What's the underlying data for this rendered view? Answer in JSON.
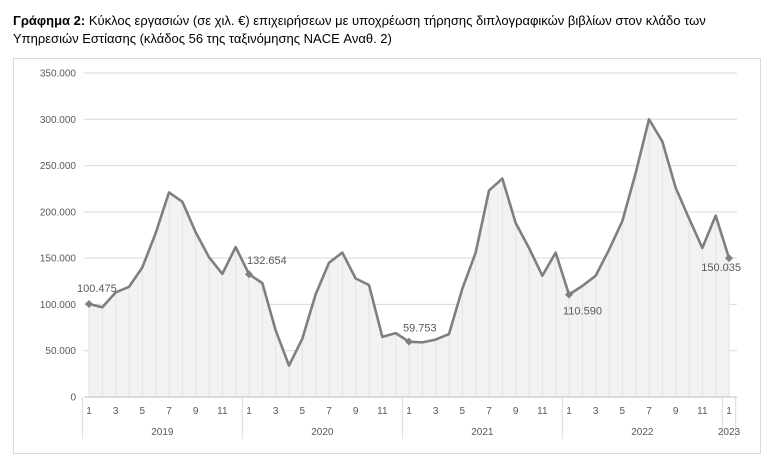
{
  "caption": {
    "lead": "Γράφημα 2:",
    "text": " Κύκλος εργασιών (σε χιλ. €) επιχειρήσεων με υποχρέωση τήρησης διπλογραφικών βιβλίων στον κλάδο των Υπηρεσιών Εστίασης (κλάδος 56 της ταξινόμησης NACE Αναθ. 2)"
  },
  "chart_data": {
    "type": "area",
    "title": "",
    "xlabel": "",
    "ylabel": "",
    "ylim": [
      0,
      350000
    ],
    "ytick_labels": [
      "0",
      "50.000",
      "100.000",
      "150.000",
      "200.000",
      "250.000",
      "300.000",
      "350.000"
    ],
    "yticks": [
      0,
      50000,
      100000,
      150000,
      200000,
      250000,
      300000,
      350000
    ],
    "grid": true,
    "line_color": "#7f7f7f",
    "fill_color": "#f2f2f2",
    "years": [
      "2019",
      "2020",
      "2021",
      "2022",
      "2023"
    ],
    "x_tick_labels": [
      "1",
      "3",
      "5",
      "7",
      "9",
      "11",
      "1",
      "3",
      "5",
      "7",
      "9",
      "11",
      "1",
      "3",
      "5",
      "7",
      "9",
      "11",
      "1",
      "3",
      "5",
      "7",
      "9",
      "11",
      "1"
    ],
    "x": [
      "2019-01",
      "2019-02",
      "2019-03",
      "2019-04",
      "2019-05",
      "2019-06",
      "2019-07",
      "2019-08",
      "2019-09",
      "2019-10",
      "2019-11",
      "2019-12",
      "2020-01",
      "2020-02",
      "2020-03",
      "2020-04",
      "2020-05",
      "2020-06",
      "2020-07",
      "2020-08",
      "2020-09",
      "2020-10",
      "2020-11",
      "2020-12",
      "2021-01",
      "2021-02",
      "2021-03",
      "2021-04",
      "2021-05",
      "2021-06",
      "2021-07",
      "2021-08",
      "2021-09",
      "2021-10",
      "2021-11",
      "2021-12",
      "2022-01",
      "2022-02",
      "2022-03",
      "2022-04",
      "2022-05",
      "2022-06",
      "2022-07",
      "2022-08",
      "2022-09",
      "2022-10",
      "2022-11",
      "2022-12",
      "2023-01"
    ],
    "values": [
      100475,
      97000,
      113000,
      119000,
      140000,
      177000,
      221000,
      211000,
      178000,
      151000,
      133000,
      162000,
      132654,
      123000,
      72000,
      34000,
      63000,
      111000,
      145000,
      156000,
      128000,
      121000,
      65000,
      69000,
      59753,
      59000,
      62000,
      68000,
      117000,
      156000,
      223000,
      236000,
      188000,
      161000,
      131000,
      156000,
      110590,
      120000,
      131000,
      159000,
      190000,
      242000,
      300000,
      276000,
      226000,
      193000,
      161000,
      196000,
      150035
    ],
    "data_labels": [
      {
        "index": 0,
        "text": "100.475"
      },
      {
        "index": 12,
        "text": "132.654"
      },
      {
        "index": 24,
        "text": "59.753"
      },
      {
        "index": 36,
        "text": "110.590"
      },
      {
        "index": 48,
        "text": "150.035"
      }
    ]
  }
}
